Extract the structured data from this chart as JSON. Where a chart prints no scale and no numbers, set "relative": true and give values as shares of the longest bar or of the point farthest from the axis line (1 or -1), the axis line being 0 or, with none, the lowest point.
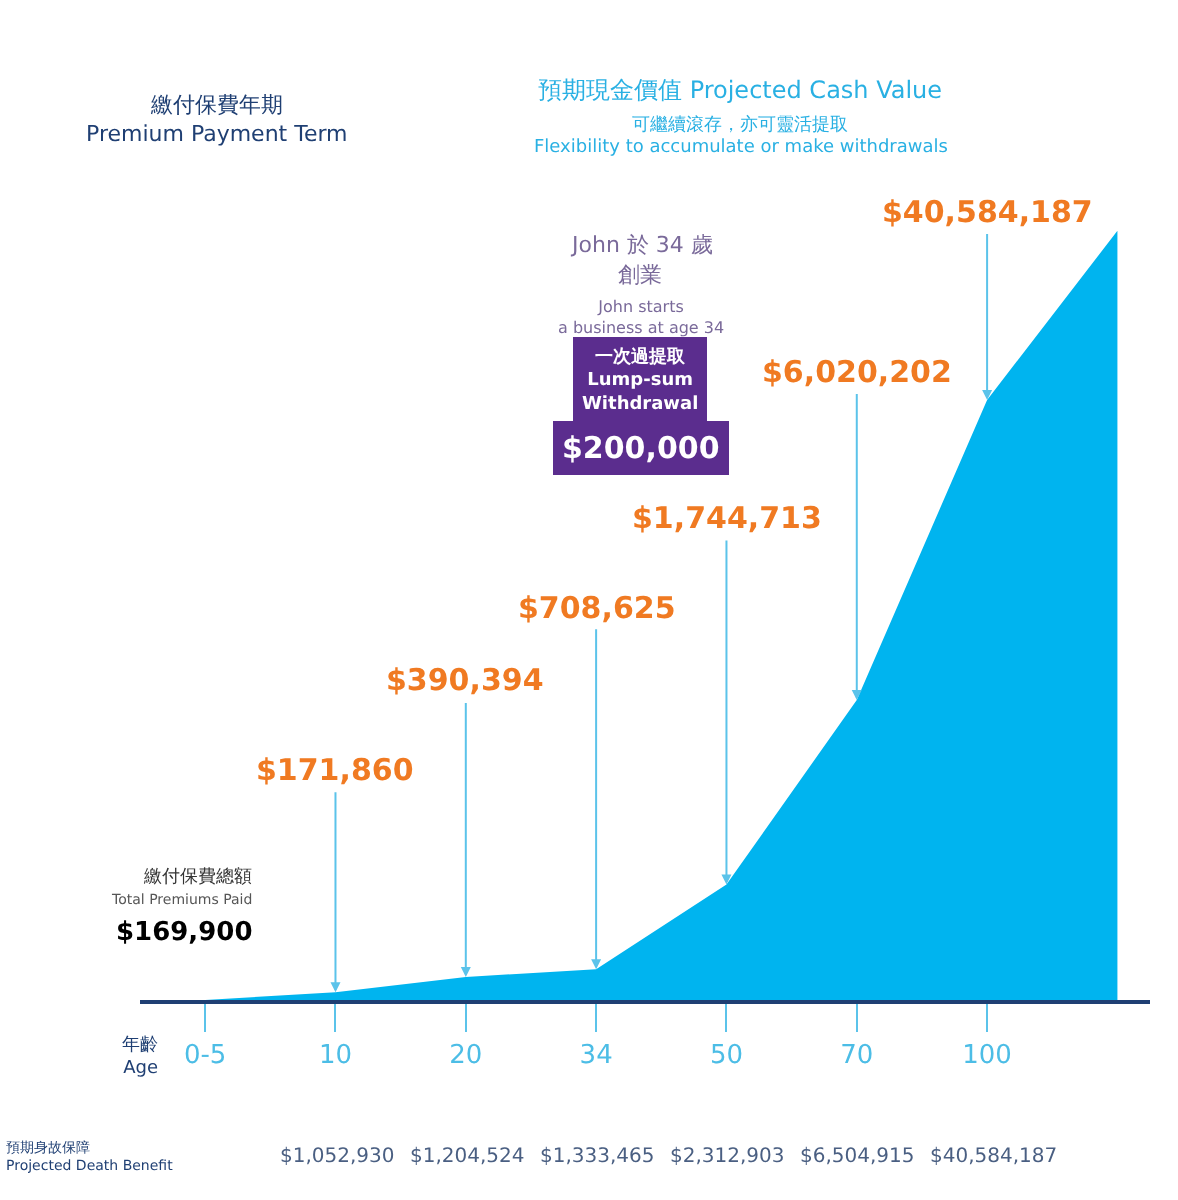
{
  "chart_data": {
    "type": "area",
    "relative": true,
    "color": "#00b4ef",
    "categories": [
      "0-5",
      "10",
      "20",
      "34",
      "50",
      "70",
      "100",
      null
    ],
    "values": [
      0,
      0.01,
      0.03,
      0.04,
      0.15,
      0.39,
      0.78,
      1
    ],
    "annotations": [
      {
        "text": "$171,860",
        "x": "10",
        "y": 0.01
      },
      {
        "text": "$390,394",
        "x": "20",
        "y": 0.03
      },
      {
        "text": "$708,625",
        "x": "34",
        "y": 0.04
      },
      {
        "text": "$1,744,713",
        "x": "50",
        "y": 0.15
      },
      {
        "text": "$6,020,202",
        "x": "70",
        "y": 0.39
      },
      {
        "text": "$40,584,187",
        "x": "100",
        "y": 0.78
      },
      "$1,052,930",
      "$1,204,524",
      "$1,333,465",
      "$2,312,903",
      "$6,504,915",
      "$40,584,187",
      "繳付保費年期\nPremium Payment Term",
      "預期現金價值 Projected Cash Value",
      "可繼續滾存，亦可靈活提取",
      "Flexibility to accumulate or make withdrawals",
      "John 於 34 歲",
      "創業",
      "John starts\na business at age 34",
      "一次過提取\nLump-sum\nWithdrawal",
      "$200,000",
      "繳付保費總額",
      "Total Premiums Paid",
      "$169,900",
      "年齡\nAge",
      "預期身故保障\nProjected Death Benefit"
    ]
  }
}
